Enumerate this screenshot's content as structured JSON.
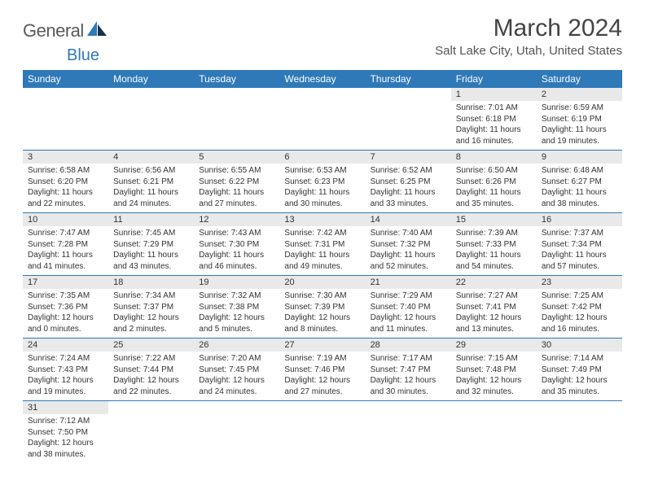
{
  "logo": {
    "text1": "General",
    "text2": "Blue"
  },
  "title": "March 2024",
  "location": "Salt Lake City, Utah, United States",
  "colors": {
    "header_bg": "#2f79b8",
    "header_text": "#ffffff",
    "daynum_bg": "#e9e9e9",
    "border": "#2f79b8",
    "page_bg": "#ffffff",
    "title_color": "#444444",
    "text_color": "#333333"
  },
  "weekdays": [
    "Sunday",
    "Monday",
    "Tuesday",
    "Wednesday",
    "Thursday",
    "Friday",
    "Saturday"
  ],
  "weeks": [
    [
      null,
      null,
      null,
      null,
      null,
      {
        "n": "1",
        "sr": "Sunrise: 7:01 AM",
        "ss": "Sunset: 6:18 PM",
        "d1": "Daylight: 11 hours",
        "d2": "and 16 minutes."
      },
      {
        "n": "2",
        "sr": "Sunrise: 6:59 AM",
        "ss": "Sunset: 6:19 PM",
        "d1": "Daylight: 11 hours",
        "d2": "and 19 minutes."
      }
    ],
    [
      {
        "n": "3",
        "sr": "Sunrise: 6:58 AM",
        "ss": "Sunset: 6:20 PM",
        "d1": "Daylight: 11 hours",
        "d2": "and 22 minutes."
      },
      {
        "n": "4",
        "sr": "Sunrise: 6:56 AM",
        "ss": "Sunset: 6:21 PM",
        "d1": "Daylight: 11 hours",
        "d2": "and 24 minutes."
      },
      {
        "n": "5",
        "sr": "Sunrise: 6:55 AM",
        "ss": "Sunset: 6:22 PM",
        "d1": "Daylight: 11 hours",
        "d2": "and 27 minutes."
      },
      {
        "n": "6",
        "sr": "Sunrise: 6:53 AM",
        "ss": "Sunset: 6:23 PM",
        "d1": "Daylight: 11 hours",
        "d2": "and 30 minutes."
      },
      {
        "n": "7",
        "sr": "Sunrise: 6:52 AM",
        "ss": "Sunset: 6:25 PM",
        "d1": "Daylight: 11 hours",
        "d2": "and 33 minutes."
      },
      {
        "n": "8",
        "sr": "Sunrise: 6:50 AM",
        "ss": "Sunset: 6:26 PM",
        "d1": "Daylight: 11 hours",
        "d2": "and 35 minutes."
      },
      {
        "n": "9",
        "sr": "Sunrise: 6:48 AM",
        "ss": "Sunset: 6:27 PM",
        "d1": "Daylight: 11 hours",
        "d2": "and 38 minutes."
      }
    ],
    [
      {
        "n": "10",
        "sr": "Sunrise: 7:47 AM",
        "ss": "Sunset: 7:28 PM",
        "d1": "Daylight: 11 hours",
        "d2": "and 41 minutes."
      },
      {
        "n": "11",
        "sr": "Sunrise: 7:45 AM",
        "ss": "Sunset: 7:29 PM",
        "d1": "Daylight: 11 hours",
        "d2": "and 43 minutes."
      },
      {
        "n": "12",
        "sr": "Sunrise: 7:43 AM",
        "ss": "Sunset: 7:30 PM",
        "d1": "Daylight: 11 hours",
        "d2": "and 46 minutes."
      },
      {
        "n": "13",
        "sr": "Sunrise: 7:42 AM",
        "ss": "Sunset: 7:31 PM",
        "d1": "Daylight: 11 hours",
        "d2": "and 49 minutes."
      },
      {
        "n": "14",
        "sr": "Sunrise: 7:40 AM",
        "ss": "Sunset: 7:32 PM",
        "d1": "Daylight: 11 hours",
        "d2": "and 52 minutes."
      },
      {
        "n": "15",
        "sr": "Sunrise: 7:39 AM",
        "ss": "Sunset: 7:33 PM",
        "d1": "Daylight: 11 hours",
        "d2": "and 54 minutes."
      },
      {
        "n": "16",
        "sr": "Sunrise: 7:37 AM",
        "ss": "Sunset: 7:34 PM",
        "d1": "Daylight: 11 hours",
        "d2": "and 57 minutes."
      }
    ],
    [
      {
        "n": "17",
        "sr": "Sunrise: 7:35 AM",
        "ss": "Sunset: 7:36 PM",
        "d1": "Daylight: 12 hours",
        "d2": "and 0 minutes."
      },
      {
        "n": "18",
        "sr": "Sunrise: 7:34 AM",
        "ss": "Sunset: 7:37 PM",
        "d1": "Daylight: 12 hours",
        "d2": "and 2 minutes."
      },
      {
        "n": "19",
        "sr": "Sunrise: 7:32 AM",
        "ss": "Sunset: 7:38 PM",
        "d1": "Daylight: 12 hours",
        "d2": "and 5 minutes."
      },
      {
        "n": "20",
        "sr": "Sunrise: 7:30 AM",
        "ss": "Sunset: 7:39 PM",
        "d1": "Daylight: 12 hours",
        "d2": "and 8 minutes."
      },
      {
        "n": "21",
        "sr": "Sunrise: 7:29 AM",
        "ss": "Sunset: 7:40 PM",
        "d1": "Daylight: 12 hours",
        "d2": "and 11 minutes."
      },
      {
        "n": "22",
        "sr": "Sunrise: 7:27 AM",
        "ss": "Sunset: 7:41 PM",
        "d1": "Daylight: 12 hours",
        "d2": "and 13 minutes."
      },
      {
        "n": "23",
        "sr": "Sunrise: 7:25 AM",
        "ss": "Sunset: 7:42 PM",
        "d1": "Daylight: 12 hours",
        "d2": "and 16 minutes."
      }
    ],
    [
      {
        "n": "24",
        "sr": "Sunrise: 7:24 AM",
        "ss": "Sunset: 7:43 PM",
        "d1": "Daylight: 12 hours",
        "d2": "and 19 minutes."
      },
      {
        "n": "25",
        "sr": "Sunrise: 7:22 AM",
        "ss": "Sunset: 7:44 PM",
        "d1": "Daylight: 12 hours",
        "d2": "and 22 minutes."
      },
      {
        "n": "26",
        "sr": "Sunrise: 7:20 AM",
        "ss": "Sunset: 7:45 PM",
        "d1": "Daylight: 12 hours",
        "d2": "and 24 minutes."
      },
      {
        "n": "27",
        "sr": "Sunrise: 7:19 AM",
        "ss": "Sunset: 7:46 PM",
        "d1": "Daylight: 12 hours",
        "d2": "and 27 minutes."
      },
      {
        "n": "28",
        "sr": "Sunrise: 7:17 AM",
        "ss": "Sunset: 7:47 PM",
        "d1": "Daylight: 12 hours",
        "d2": "and 30 minutes."
      },
      {
        "n": "29",
        "sr": "Sunrise: 7:15 AM",
        "ss": "Sunset: 7:48 PM",
        "d1": "Daylight: 12 hours",
        "d2": "and 32 minutes."
      },
      {
        "n": "30",
        "sr": "Sunrise: 7:14 AM",
        "ss": "Sunset: 7:49 PM",
        "d1": "Daylight: 12 hours",
        "d2": "and 35 minutes."
      }
    ],
    [
      {
        "n": "31",
        "sr": "Sunrise: 7:12 AM",
        "ss": "Sunset: 7:50 PM",
        "d1": "Daylight: 12 hours",
        "d2": "and 38 minutes."
      },
      null,
      null,
      null,
      null,
      null,
      null
    ]
  ]
}
